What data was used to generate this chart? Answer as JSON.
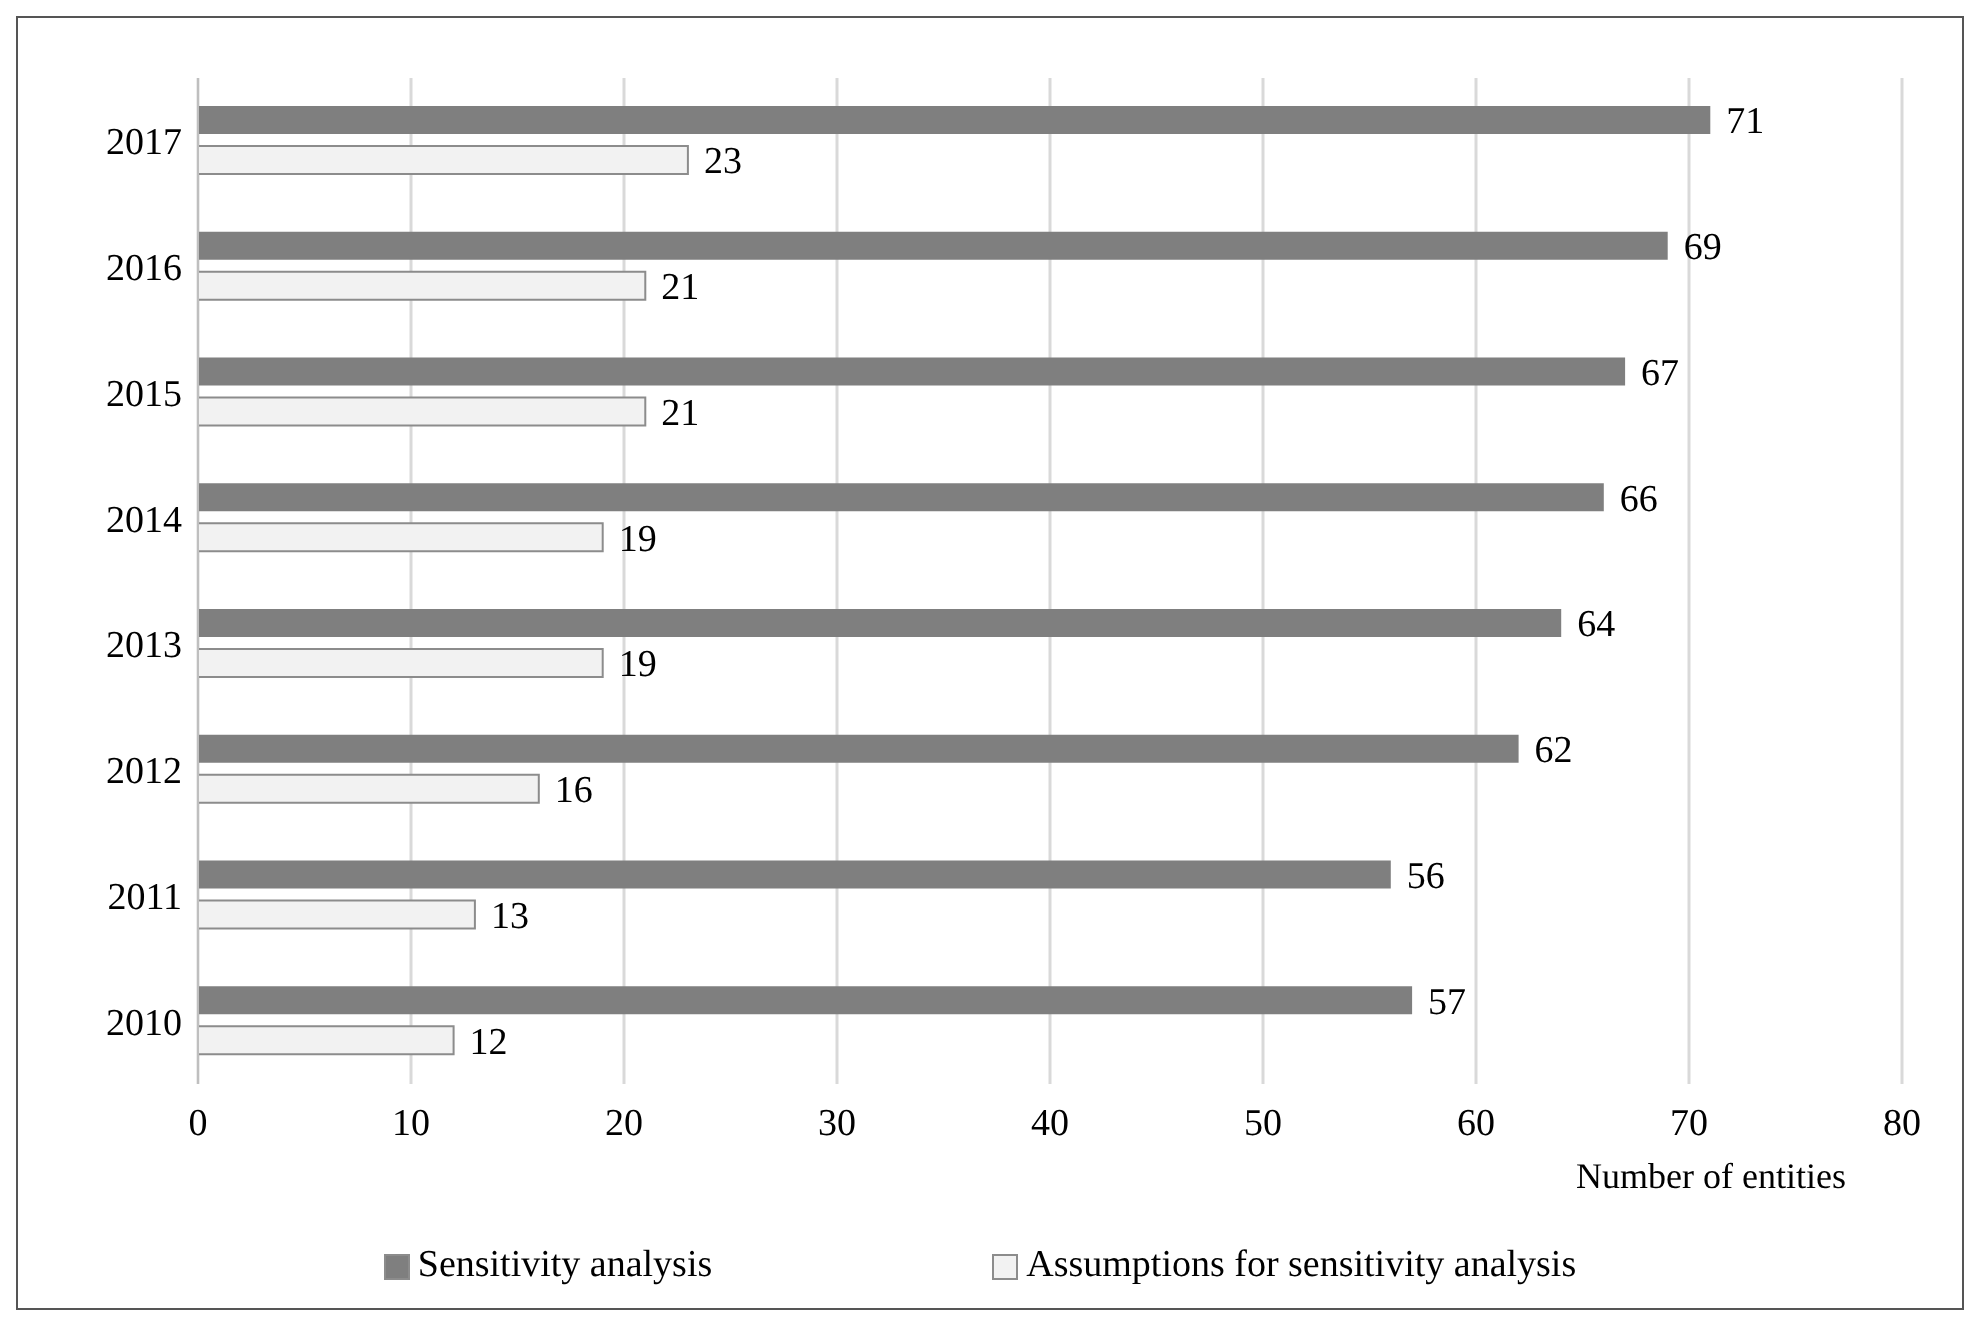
{
  "chart_data": {
    "type": "bar",
    "orientation": "horizontal",
    "categories": [
      "2017",
      "2016",
      "2015",
      "2014",
      "2013",
      "2012",
      "2011",
      "2010"
    ],
    "series": [
      {
        "name": "Sensitivity analysis",
        "color": "#7f7f7f",
        "values": [
          71,
          69,
          67,
          66,
          64,
          62,
          56,
          57
        ]
      },
      {
        "name": "Assumptions for sensitivity analysis",
        "color": "#f2f2f2",
        "values": [
          23,
          21,
          21,
          19,
          19,
          16,
          13,
          12
        ]
      }
    ],
    "xlabel": "Number of entities",
    "xlim": [
      0,
      80
    ],
    "xticks": [
      0,
      10,
      20,
      30,
      40,
      50,
      60,
      70,
      80
    ],
    "grid": "x",
    "legend": "bottom",
    "data_labels": true
  }
}
